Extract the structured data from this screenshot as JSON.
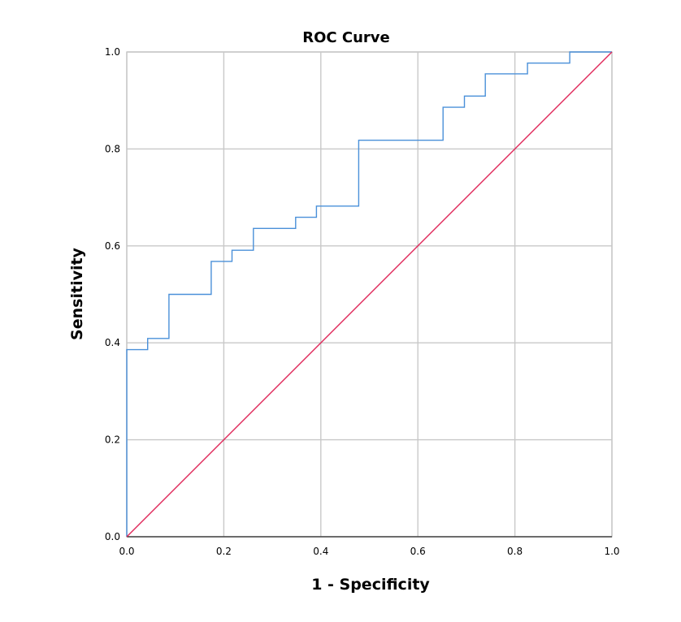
{
  "chart_data": {
    "type": "line",
    "title": "ROC Curve",
    "xlabel": "1 - Specificity",
    "ylabel": "Sensitivity",
    "xlim": [
      0,
      1
    ],
    "ylim": [
      0,
      1
    ],
    "x_ticks": [
      "0.0",
      "0.2",
      "0.4",
      "0.6",
      "0.8",
      "1.0"
    ],
    "y_ticks": [
      "0.0",
      "0.2",
      "0.4",
      "0.6",
      "0.8",
      "1.0"
    ],
    "grid": true,
    "series": [
      {
        "color": "#4a90d9",
        "step": true,
        "points": [
          [
            0.0,
            0.0
          ],
          [
            0.0,
            0.386
          ],
          [
            0.043,
            0.386
          ],
          [
            0.043,
            0.409
          ],
          [
            0.087,
            0.409
          ],
          [
            0.087,
            0.5
          ],
          [
            0.174,
            0.5
          ],
          [
            0.174,
            0.568
          ],
          [
            0.217,
            0.568
          ],
          [
            0.217,
            0.591
          ],
          [
            0.261,
            0.591
          ],
          [
            0.261,
            0.636
          ],
          [
            0.348,
            0.636
          ],
          [
            0.348,
            0.659
          ],
          [
            0.391,
            0.659
          ],
          [
            0.391,
            0.682
          ],
          [
            0.478,
            0.682
          ],
          [
            0.478,
            0.818
          ],
          [
            0.652,
            0.818
          ],
          [
            0.652,
            0.886
          ],
          [
            0.696,
            0.886
          ],
          [
            0.696,
            0.909
          ],
          [
            0.739,
            0.909
          ],
          [
            0.739,
            0.955
          ],
          [
            0.826,
            0.955
          ],
          [
            0.826,
            0.977
          ],
          [
            0.913,
            0.977
          ],
          [
            0.913,
            1.0
          ],
          [
            1.0,
            1.0
          ]
        ]
      },
      {
        "color": "#e0285a",
        "step": false,
        "points": [
          [
            0.0,
            0.0
          ],
          [
            1.0,
            1.0
          ]
        ]
      }
    ]
  }
}
